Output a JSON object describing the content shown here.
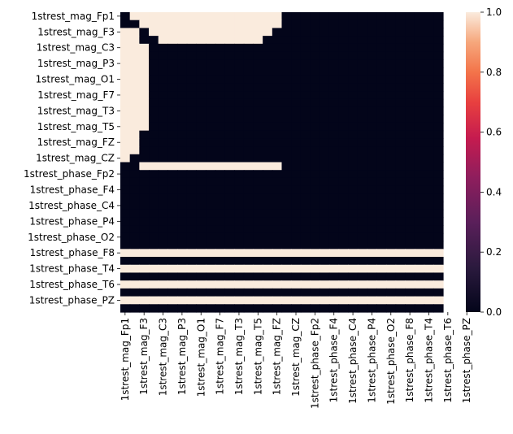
{
  "chart_data": {
    "type": "heatmap",
    "title": "",
    "xlabel": "",
    "ylabel": "",
    "row_labels_shown": [
      "1strest_mag_Fp1",
      "1strest_mag_F3",
      "1strest_mag_C3",
      "1strest_mag_P3",
      "1strest_mag_O1",
      "1strest_mag_F7",
      "1strest_mag_T3",
      "1strest_mag_T5",
      "1strest_mag_FZ",
      "1strest_mag_CZ",
      "1strest_phase_Fp2",
      "1strest_phase_F4",
      "1strest_phase_C4",
      "1strest_phase_P4",
      "1strest_phase_O2",
      "1strest_phase_F8",
      "1strest_phase_T4",
      "1strest_phase_T6",
      "1strest_phase_PZ"
    ],
    "col_labels_shown": [
      "1strest_mag_Fp1",
      "1strest_mag_F3",
      "1strest_mag_C3",
      "1strest_mag_P3",
      "1strest_mag_O1",
      "1strest_mag_F7",
      "1strest_mag_T3",
      "1strest_mag_T5",
      "1strest_mag_FZ",
      "1strest_mag_CZ",
      "1strest_phase_Fp2",
      "1strest_phase_F4",
      "1strest_phase_C4",
      "1strest_phase_P4",
      "1strest_phase_O2",
      "1strest_phase_F8",
      "1strest_phase_T4",
      "1strest_phase_T6",
      "1strest_phase_PZ"
    ],
    "rows": 38,
    "cols": 34,
    "label_step": 2,
    "vmin": 0,
    "vmax": 1,
    "colorbar_ticks": [
      "0.0",
      "0.2",
      "0.4",
      "0.6",
      "0.8",
      "1.0"
    ],
    "colormap": "rocket",
    "colormap_low": "#03051a",
    "colormap_high": "#faebdd",
    "matrix": [
      "0111111111111111100000000000000000",
      "0011111111111111100000000000000000",
      "1101111111111111000000000000000000",
      "1100111111111110000000000000000000",
      "1110000000000000000000000000000000",
      "1110000000000000000000000000000000",
      "1110000000000000000000000000000000",
      "1110000000000000000000000000000000",
      "1110000000000000000000000000000000",
      "1110000000000000000000000000000000",
      "1110000000000000000000000000000000",
      "1110000000000000000000000000000000",
      "1110000000000000000000000000000000",
      "1110000000000000000000000000000000",
      "1110000000000000000000000000000000",
      "1100000000000000000000000000000000",
      "1100000000000000000000000000000000",
      "1100000000000000000000000000000000",
      "1000000000000000000000000000000000",
      "0011111111111111100000000000000000",
      "0000000000000000000000000000000000",
      "0000000000000000000000000000000000",
      "0000000000000000000000000000000000",
      "0000000000000000000000000000000000",
      "0000000000000000000000000000000000",
      "0000000000000000000000000000000000",
      "0000000000000000000000000000000000",
      "0000000000000000000000000000000000",
      "0000000000000000000000000000000000",
      "0000000000000000000000000000000000",
      "1111111111111111111111111111111111",
      "0000000000000000000000000000000000",
      "1111111111111111111111111111111111",
      "0000000000000000000000000000000000",
      "1111111111111111111111111111111111",
      "0000000000000000000000000000000000",
      "1111111111111111111111111111111111",
      "0000000000000000000000000000000000"
    ]
  }
}
